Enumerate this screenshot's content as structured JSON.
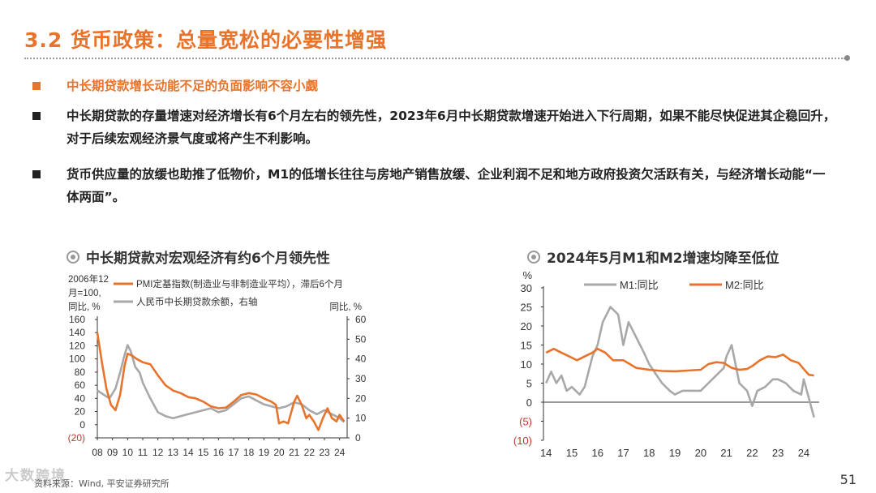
{
  "header": {
    "title": "3.2 货币政策：总量宽松的必要性增强"
  },
  "bullets": [
    {
      "text": "中长期贷款增长动能不足的负面影响不容小觑"
    },
    {
      "text": "中长期贷款的存量增速对经济增长有6个月左右的领先性，2023年6月中长期贷款增速开始进入下行周期，如果不能尽快促进其企稳回升，对于后续宏观经济景气度或将产生不利影响。"
    },
    {
      "text": "货币供应量的放缓也助推了低物价，M1的低增长往往与房地产销售放缓、企业利润不足和地方政府投资欠活跃有关，与经济增长动能“一体两面”。"
    }
  ],
  "chart_left": {
    "title": "中长期贷款对宏观经济有约6个月领先性",
    "left_axis_label": [
      "2006年12",
      "月=100,",
      "同比, %"
    ],
    "right_axis_label": "同比, %",
    "chart_data": {
      "type": "line",
      "x_ticks": [
        "08",
        "09",
        "10",
        "11",
        "12",
        "13",
        "14",
        "15",
        "16",
        "17",
        "18",
        "19",
        "20",
        "21",
        "22",
        "23",
        "24"
      ],
      "ylim_left": [
        -20,
        160
      ],
      "yticks_left": [
        "(20)",
        "0",
        "20",
        "40",
        "60",
        "80",
        "100",
        "120",
        "140",
        "160"
      ],
      "ylim_right": [
        0,
        60
      ],
      "yticks_right": [
        "0",
        "10",
        "20",
        "30",
        "40",
        "50",
        "60"
      ],
      "series": [
        {
          "name": "PMI定基指数(制造业与非制造业平均），滞后6个月",
          "axis": "left",
          "color": "#e8732a",
          "points": [
            [
              2008.0,
              140
            ],
            [
              2008.3,
              95
            ],
            [
              2008.6,
              55
            ],
            [
              2008.9,
              30
            ],
            [
              2009.2,
              22
            ],
            [
              2009.5,
              45
            ],
            [
              2009.8,
              90
            ],
            [
              2010.0,
              108
            ],
            [
              2010.3,
              105
            ],
            [
              2010.6,
              100
            ],
            [
              2011.0,
              95
            ],
            [
              2011.5,
              92
            ],
            [
              2012.0,
              75
            ],
            [
              2012.5,
              60
            ],
            [
              2013.0,
              52
            ],
            [
              2013.5,
              48
            ],
            [
              2014.0,
              42
            ],
            [
              2014.5,
              40
            ],
            [
              2015.0,
              35
            ],
            [
              2015.5,
              28
            ],
            [
              2016.0,
              25
            ],
            [
              2016.5,
              26
            ],
            [
              2017.0,
              35
            ],
            [
              2017.5,
              45
            ],
            [
              2018.0,
              48
            ],
            [
              2018.5,
              46
            ],
            [
              2019.0,
              40
            ],
            [
              2019.5,
              35
            ],
            [
              2019.8,
              30
            ],
            [
              2020.0,
              2
            ],
            [
              2020.3,
              5
            ],
            [
              2020.6,
              2
            ],
            [
              2021.0,
              35
            ],
            [
              2021.2,
              44
            ],
            [
              2021.5,
              30
            ],
            [
              2021.8,
              10
            ],
            [
              2022.0,
              15
            ],
            [
              2022.3,
              5
            ],
            [
              2022.6,
              -8
            ],
            [
              2022.9,
              10
            ],
            [
              2023.2,
              25
            ],
            [
              2023.5,
              10
            ],
            [
              2023.8,
              5
            ],
            [
              2024.0,
              15
            ],
            [
              2024.3,
              5
            ]
          ]
        },
        {
          "name": "人民币中长期贷款余额，右轴",
          "axis": "right",
          "color": "#a8a8a8",
          "points": [
            [
              2008.0,
              24
            ],
            [
              2008.4,
              22
            ],
            [
              2008.8,
              20
            ],
            [
              2009.2,
              25
            ],
            [
              2009.5,
              33
            ],
            [
              2009.8,
              42
            ],
            [
              2010.0,
              47
            ],
            [
              2010.2,
              44
            ],
            [
              2010.5,
              36
            ],
            [
              2010.8,
              33
            ],
            [
              2011.0,
              28
            ],
            [
              2011.5,
              20
            ],
            [
              2012.0,
              13
            ],
            [
              2012.5,
              11
            ],
            [
              2013.0,
              10
            ],
            [
              2013.5,
              11
            ],
            [
              2014.0,
              12
            ],
            [
              2014.5,
              13
            ],
            [
              2015.0,
              14
            ],
            [
              2015.5,
              15
            ],
            [
              2016.0,
              13
            ],
            [
              2016.5,
              14
            ],
            [
              2017.0,
              17
            ],
            [
              2017.5,
              20
            ],
            [
              2018.0,
              21
            ],
            [
              2018.5,
              19
            ],
            [
              2019.0,
              17
            ],
            [
              2019.5,
              16
            ],
            [
              2020.0,
              15
            ],
            [
              2020.5,
              16
            ],
            [
              2021.0,
              18
            ],
            [
              2021.5,
              17
            ],
            [
              2022.0,
              14
            ],
            [
              2022.5,
              12
            ],
            [
              2023.0,
              14
            ],
            [
              2023.5,
              12
            ],
            [
              2024.0,
              10
            ],
            [
              2024.3,
              8
            ]
          ]
        }
      ]
    }
  },
  "chart_right": {
    "title": "2024年5月M1和M2增速均降至低位",
    "y_unit": "%",
    "chart_data": {
      "type": "line",
      "x_ticks": [
        "14",
        "15",
        "16",
        "17",
        "18",
        "19",
        "20",
        "21",
        "22",
        "23",
        "24"
      ],
      "ylim": [
        -10,
        30
      ],
      "yticks": [
        "(10)",
        "(5)",
        "0",
        "5",
        "10",
        "15",
        "20",
        "25",
        "30"
      ],
      "series": [
        {
          "name": "M1:同比",
          "color": "#a8a8a8",
          "points": [
            [
              2014.0,
              5
            ],
            [
              2014.2,
              8
            ],
            [
              2014.4,
              5
            ],
            [
              2014.6,
              7
            ],
            [
              2014.8,
              3
            ],
            [
              2015.0,
              4
            ],
            [
              2015.3,
              2
            ],
            [
              2015.5,
              4
            ],
            [
              2015.8,
              12
            ],
            [
              2016.0,
              15
            ],
            [
              2016.2,
              21
            ],
            [
              2016.5,
              25
            ],
            [
              2016.8,
              23
            ],
            [
              2017.0,
              15
            ],
            [
              2017.2,
              21
            ],
            [
              2017.5,
              17
            ],
            [
              2017.8,
              13
            ],
            [
              2018.0,
              10
            ],
            [
              2018.3,
              7
            ],
            [
              2018.5,
              5
            ],
            [
              2018.8,
              3
            ],
            [
              2019.0,
              2
            ],
            [
              2019.3,
              3
            ],
            [
              2019.6,
              3
            ],
            [
              2020.0,
              3
            ],
            [
              2020.3,
              5
            ],
            [
              2020.6,
              7
            ],
            [
              2020.9,
              9
            ],
            [
              2021.0,
              12
            ],
            [
              2021.2,
              15
            ],
            [
              2021.5,
              5
            ],
            [
              2021.8,
              3
            ],
            [
              2022.0,
              -1
            ],
            [
              2022.2,
              3
            ],
            [
              2022.5,
              4
            ],
            [
              2022.8,
              6
            ],
            [
              2023.0,
              6
            ],
            [
              2023.3,
              5
            ],
            [
              2023.6,
              3
            ],
            [
              2023.9,
              2
            ],
            [
              2024.0,
              6
            ],
            [
              2024.2,
              1
            ],
            [
              2024.4,
              -4
            ]
          ]
        },
        {
          "name": "M2:同比",
          "color": "#e8732a",
          "points": [
            [
              2014.0,
              13
            ],
            [
              2014.3,
              14
            ],
            [
              2014.6,
              13
            ],
            [
              2014.9,
              12
            ],
            [
              2015.2,
              11
            ],
            [
              2015.5,
              12
            ],
            [
              2015.8,
              13
            ],
            [
              2016.0,
              14
            ],
            [
              2016.3,
              13
            ],
            [
              2016.6,
              11
            ],
            [
              2017.0,
              11
            ],
            [
              2017.5,
              9
            ],
            [
              2018.0,
              8.5
            ],
            [
              2018.5,
              8.2
            ],
            [
              2019.0,
              8.1
            ],
            [
              2019.5,
              8.3
            ],
            [
              2020.0,
              8.5
            ],
            [
              2020.3,
              10
            ],
            [
              2020.6,
              10.5
            ],
            [
              2020.9,
              10.3
            ],
            [
              2021.2,
              9
            ],
            [
              2021.5,
              8.5
            ],
            [
              2021.8,
              8.7
            ],
            [
              2022.0,
              9.5
            ],
            [
              2022.3,
              11
            ],
            [
              2022.6,
              12
            ],
            [
              2022.9,
              11.8
            ],
            [
              2023.2,
              12.5
            ],
            [
              2023.5,
              11
            ],
            [
              2023.8,
              10.3
            ],
            [
              2024.0,
              8.7
            ],
            [
              2024.2,
              7.2
            ],
            [
              2024.4,
              7
            ]
          ]
        }
      ]
    }
  },
  "footer": {
    "source": "资料来源：Wind, 平安证券研究所",
    "page_number": "51",
    "watermark": "大数跨境"
  }
}
